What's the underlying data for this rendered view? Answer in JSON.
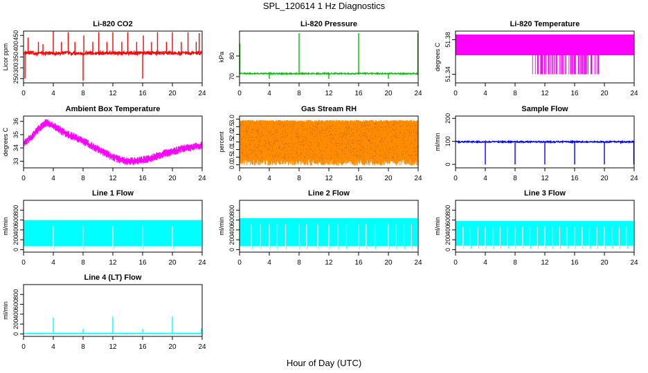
{
  "figure": {
    "title": "SPL_120614  1 Hz Diagnostics",
    "xlabel": "Hour of Day (UTC)"
  },
  "chart_data": [
    {
      "type": "line",
      "title": "Li-820 CO2",
      "ylabel": "Licor ppm",
      "xlim": [
        0,
        24
      ],
      "ylim": [
        230,
        470
      ],
      "xticks": [
        0,
        4,
        8,
        12,
        16,
        20,
        24
      ],
      "xtick_labels": [
        "0",
        "4",
        "8",
        "12",
        "16",
        "20",
        "24"
      ],
      "yticks": [
        250,
        300,
        350,
        400,
        450
      ],
      "ytick_labels": [
        "250",
        "300",
        "350",
        "400",
        "450"
      ],
      "color": "#ff0000",
      "series": [
        {
          "name": "CO2",
          "baseline": 368,
          "noise": 8,
          "spikes": [
            [
              0.2,
              250
            ],
            [
              0.6,
              440
            ],
            [
              2.0,
              420
            ],
            [
              2.6,
              410
            ],
            [
              4.0,
              470
            ],
            [
              5.1,
              420
            ],
            [
              6.0,
              465
            ],
            [
              6.9,
              420
            ],
            [
              8.0,
              240
            ],
            [
              8.1,
              450
            ],
            [
              9.3,
              420
            ],
            [
              10.1,
              465
            ],
            [
              11.2,
              420
            ],
            [
              12.0,
              465
            ],
            [
              13.2,
              420
            ],
            [
              14.0,
              465
            ],
            [
              15.2,
              420
            ],
            [
              16.0,
              250
            ],
            [
              16.1,
              450
            ],
            [
              17.2,
              420
            ],
            [
              18.0,
              465
            ],
            [
              19.2,
              420
            ],
            [
              20.0,
              465
            ],
            [
              21.2,
              420
            ],
            [
              22.1,
              465
            ],
            [
              23.2,
              420
            ],
            [
              23.6,
              460
            ]
          ]
        }
      ]
    },
    {
      "type": "line",
      "title": "Li-820 Pressure",
      "ylabel": "kPa",
      "xlim": [
        0,
        24
      ],
      "ylim": [
        67,
        92
      ],
      "xticks": [
        0,
        4,
        8,
        12,
        16,
        20,
        24
      ],
      "xtick_labels": [
        "0",
        "4",
        "8",
        "12",
        "16",
        "20",
        "24"
      ],
      "yticks": [
        70,
        80
      ],
      "ytick_labels": [
        "70",
        "80"
      ],
      "color": "#00c000",
      "series": [
        {
          "name": "Pressure",
          "baseline": 71.5,
          "noise": 0.3,
          "spikes": [
            [
              0.05,
              86
            ],
            [
              4.0,
              69
            ],
            [
              8.0,
              91
            ],
            [
              12.0,
              69
            ],
            [
              16.0,
              91
            ],
            [
              20.0,
              69
            ],
            [
              23.95,
              91
            ]
          ]
        }
      ]
    },
    {
      "type": "line",
      "title": "Li-820 Temperature",
      "ylabel": "degrees C",
      "xlim": [
        0,
        24
      ],
      "ylim": [
        51.33,
        51.39
      ],
      "xticks": [
        0,
        4,
        8,
        12,
        16,
        20,
        24
      ],
      "xtick_labels": [
        "0",
        "4",
        "8",
        "12",
        "16",
        "20",
        "24"
      ],
      "yticks": [
        51.34,
        51.38
      ],
      "ytick_labels": [
        "51.34",
        "51.38"
      ],
      "color": "#ff00ff",
      "series": [
        {
          "name": "Temperature",
          "band": [
            51.362,
            51.386
          ],
          "extra_low": [
            51.34
          ],
          "extra_range": [
            10.3,
            19.3
          ]
        }
      ]
    },
    {
      "type": "line",
      "title": "Ambient Box Temperature",
      "ylabel": "degrees C",
      "xlim": [
        0,
        24
      ],
      "ylim": [
        32.5,
        36.4
      ],
      "xticks": [
        0,
        4,
        8,
        12,
        16,
        20,
        24
      ],
      "xtick_labels": [
        "0",
        "4",
        "8",
        "12",
        "16",
        "20",
        "24"
      ],
      "yticks": [
        33,
        34,
        35,
        36
      ],
      "ytick_labels": [
        "33",
        "34",
        "35",
        "36"
      ],
      "color": "#ff00ff",
      "series": [
        {
          "name": "Ambient",
          "x": [
            0,
            1,
            2,
            3,
            4,
            5,
            6,
            7,
            8,
            9,
            10,
            11,
            12,
            13,
            14,
            15,
            16,
            17,
            18,
            19,
            20,
            21,
            22,
            23,
            24
          ],
          "y": [
            34.3,
            34.8,
            35.4,
            35.9,
            35.7,
            35.3,
            35.0,
            34.8,
            34.5,
            34.2,
            33.9,
            33.6,
            33.3,
            33.1,
            33.0,
            33.0,
            33.1,
            33.2,
            33.4,
            33.6,
            33.7,
            33.9,
            34.0,
            34.1,
            34.2
          ],
          "band": 0.6
        }
      ]
    },
    {
      "type": "line",
      "title": "Gas Stream RH",
      "ylabel": "percent",
      "xlim": [
        0,
        24
      ],
      "ylim": [
        -0.2,
        3.2
      ],
      "xticks": [
        0,
        4,
        8,
        12,
        16,
        20,
        24
      ],
      "xtick_labels": [
        "0",
        "4",
        "8",
        "12",
        "16",
        "20",
        "24"
      ],
      "yticks": [
        0.0,
        0.5,
        1.0,
        1.5,
        2.0,
        2.5,
        3.0
      ],
      "ytick_labels": [
        "0.0",
        "0.5",
        "1.0",
        "1.5",
        "2.0",
        "2.5",
        "3.0"
      ],
      "color": "#ff8c00",
      "series": [
        {
          "name": "RH",
          "band": [
            0.4,
            2.8
          ],
          "min": -0.05,
          "max": 3.1
        }
      ]
    },
    {
      "type": "line",
      "title": "Sample Flow",
      "ylabel": "ml/min",
      "xlim": [
        0,
        24
      ],
      "ylim": [
        -15,
        210
      ],
      "xticks": [
        0,
        4,
        8,
        12,
        16,
        20,
        24
      ],
      "xtick_labels": [
        "0",
        "4",
        "8",
        "12",
        "16",
        "20",
        "24"
      ],
      "yticks": [
        0,
        100,
        200
      ],
      "ytick_labels": [
        "0",
        "100",
        "200"
      ],
      "color": "#0000ff",
      "series": [
        {
          "name": "Sample Flow",
          "baseline": 98,
          "noise": 3,
          "spikes": [
            [
              4.0,
              0
            ],
            [
              8.0,
              0
            ],
            [
              12.0,
              0
            ],
            [
              16.0,
              0
            ],
            [
              20.0,
              0
            ],
            [
              23.95,
              0
            ]
          ]
        }
      ]
    },
    {
      "type": "line",
      "title": "Line 1 Flow",
      "ylabel": "ml/min",
      "xlim": [
        0,
        24
      ],
      "ylim": [
        -50,
        1000
      ],
      "xticks": [
        0,
        4,
        8,
        12,
        16,
        20,
        24
      ],
      "xtick_labels": [
        "0",
        "4",
        "8",
        "12",
        "16",
        "20",
        "24"
      ],
      "yticks": [
        0,
        200,
        400,
        600,
        800
      ],
      "ytick_labels": [
        "0",
        "200",
        "400",
        "600",
        "800"
      ],
      "color": "#00ffff",
      "series": [
        {
          "name": "Line 1",
          "band": [
            70,
            600
          ],
          "gaps": [
            4.0,
            8.0,
            12.0,
            16.0,
            20.0
          ],
          "range": [
            0,
            23.9
          ]
        }
      ]
    },
    {
      "type": "line",
      "title": "Line 2 Flow",
      "ylabel": "ml/min",
      "xlim": [
        0,
        24
      ],
      "ylim": [
        -50,
        1000
      ],
      "xticks": [
        0,
        4,
        8,
        12,
        16,
        20,
        24
      ],
      "xtick_labels": [
        "0",
        "4",
        "8",
        "12",
        "16",
        "20",
        "24"
      ],
      "yticks": [
        0,
        200,
        400,
        600,
        800
      ],
      "ytick_labels": [
        "0",
        "200",
        "400",
        "600",
        "800"
      ],
      "color": "#00ffff",
      "series": [
        {
          "name": "Line 2",
          "band": [
            70,
            640
          ],
          "gaps": [
            1.6,
            2.8,
            4.0,
            5.0,
            6.2,
            8.0,
            9.0,
            10.5,
            12.0,
            13.2,
            14.3,
            16.0,
            17.0,
            18.2,
            20.0,
            21.0,
            22.1,
            23.1
          ],
          "range": [
            0,
            23.9
          ]
        }
      ]
    },
    {
      "type": "line",
      "title": "Line 3 Flow",
      "ylabel": "ml/min",
      "xlim": [
        0,
        24
      ],
      "ylim": [
        -50,
        1000
      ],
      "xticks": [
        0,
        4,
        8,
        12,
        16,
        20,
        24
      ],
      "xtick_labels": [
        "0",
        "4",
        "8",
        "12",
        "16",
        "20",
        "24"
      ],
      "yticks": [
        0,
        200,
        400,
        600,
        800
      ],
      "ytick_labels": [
        "0",
        "200",
        "400",
        "600",
        "800"
      ],
      "color": "#00ffff",
      "series": [
        {
          "name": "Line 3",
          "band": [
            80,
            580
          ],
          "gaps": [
            1.0,
            2.0,
            3.0,
            4.0,
            5.0,
            6.0,
            7.0,
            8.0,
            9.0,
            10.0,
            11.0,
            12.0,
            13.0,
            14.0,
            15.0,
            16.0,
            17.0,
            18.0,
            19.0,
            20.0,
            21.0,
            22.0,
            23.0
          ],
          "range": [
            0,
            23.9
          ]
        }
      ]
    },
    {
      "type": "line",
      "title": "Line 4 (LT) Flow",
      "ylabel": "ml/min",
      "xlim": [
        0,
        24
      ],
      "ylim": [
        -50,
        1000
      ],
      "xticks": [
        0,
        4,
        8,
        12,
        16,
        20,
        24
      ],
      "xtick_labels": [
        "0",
        "4",
        "8",
        "12",
        "16",
        "20",
        "24"
      ],
      "yticks": [
        0,
        200,
        400,
        600,
        800
      ],
      "ytick_labels": [
        "0",
        "200",
        "400",
        "600",
        "800"
      ],
      "color": "#00ffff",
      "series": [
        {
          "name": "Line 4",
          "baseline": 10,
          "noise": 3,
          "spikes": [
            [
              4.0,
              330
            ],
            [
              8.0,
              100
            ],
            [
              12.0,
              350
            ],
            [
              16.0,
              100
            ],
            [
              20.0,
              350
            ],
            [
              23.9,
              110
            ]
          ]
        }
      ]
    }
  ]
}
